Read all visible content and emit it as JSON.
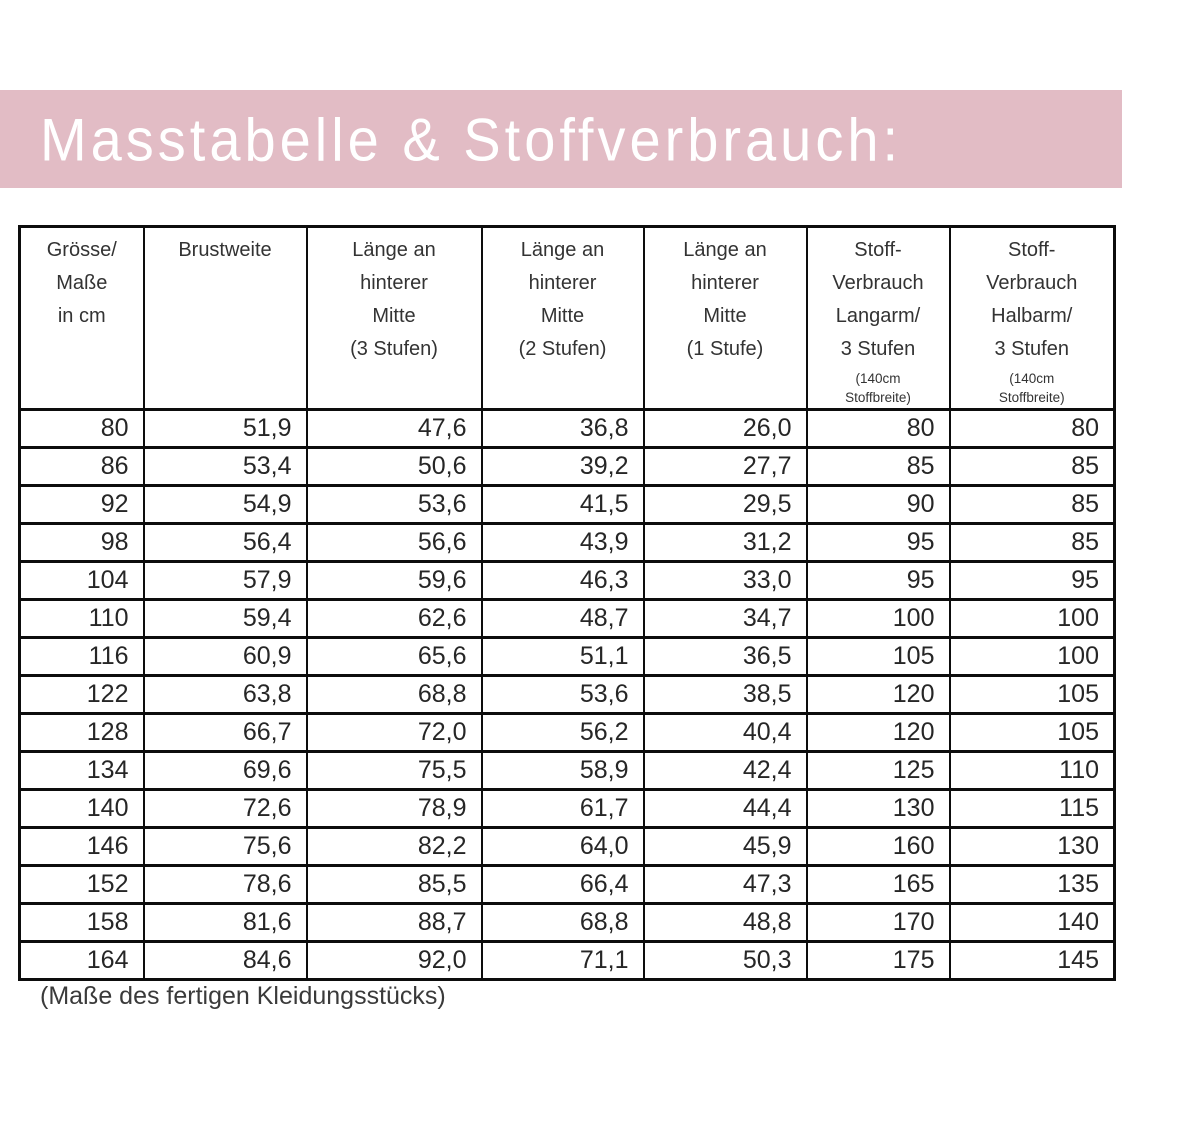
{
  "header": {
    "title": "Masstabelle & Stoffverbrauch:",
    "banner_color": "#e2bcc5",
    "title_color": "#ffffff"
  },
  "table": {
    "columns": [
      {
        "lines": [
          "Grösse/",
          "Maße",
          "in cm"
        ],
        "note": ""
      },
      {
        "lines": [
          "Brustweite"
        ],
        "note": ""
      },
      {
        "lines": [
          "Länge an",
          "hinterer",
          "Mitte",
          "(3 Stufen)"
        ],
        "note": ""
      },
      {
        "lines": [
          "Länge an",
          "hinterer",
          "Mitte",
          "(2 Stufen)"
        ],
        "note": ""
      },
      {
        "lines": [
          "Länge an",
          "hinterer",
          "Mitte",
          "(1 Stufe)"
        ],
        "note": ""
      },
      {
        "lines": [
          "Stoff-",
          "Verbrauch",
          "Langarm/",
          "3 Stufen"
        ],
        "note": "(140cm\nStoffbreite)"
      },
      {
        "lines": [
          "Stoff-",
          "Verbrauch",
          "Halbarm/",
          "3 Stufen"
        ],
        "note": "(140cm\nStoffbreite)"
      }
    ],
    "rows": [
      [
        "80",
        "51,9",
        "47,6",
        "36,8",
        "26,0",
        "80",
        "80"
      ],
      [
        "86",
        "53,4",
        "50,6",
        "39,2",
        "27,7",
        "85",
        "85"
      ],
      [
        "92",
        "54,9",
        "53,6",
        "41,5",
        "29,5",
        "90",
        "85"
      ],
      [
        "98",
        "56,4",
        "56,6",
        "43,9",
        "31,2",
        "95",
        "85"
      ],
      [
        "104",
        "57,9",
        "59,6",
        "46,3",
        "33,0",
        "95",
        "95"
      ],
      [
        "110",
        "59,4",
        "62,6",
        "48,7",
        "34,7",
        "100",
        "100"
      ],
      [
        "116",
        "60,9",
        "65,6",
        "51,1",
        "36,5",
        "105",
        "100"
      ],
      [
        "122",
        "63,8",
        "68,8",
        "53,6",
        "38,5",
        "120",
        "105"
      ],
      [
        "128",
        "66,7",
        "72,0",
        "56,2",
        "40,4",
        "120",
        "105"
      ],
      [
        "134",
        "69,6",
        "75,5",
        "58,9",
        "42,4",
        "125",
        "110"
      ],
      [
        "140",
        "72,6",
        "78,9",
        "61,7",
        "44,4",
        "130",
        "115"
      ],
      [
        "146",
        "75,6",
        "82,2",
        "64,0",
        "45,9",
        "160",
        "130"
      ],
      [
        "152",
        "78,6",
        "85,5",
        "66,4",
        "47,3",
        "165",
        "135"
      ],
      [
        "158",
        "81,6",
        "88,7",
        "68,8",
        "48,8",
        "170",
        "140"
      ],
      [
        "164",
        "84,6",
        "92,0",
        "71,1",
        "50,3",
        "175",
        "145"
      ]
    ]
  },
  "footer": {
    "caption": "(Maße des fertigen Kleidungsstücks)"
  }
}
